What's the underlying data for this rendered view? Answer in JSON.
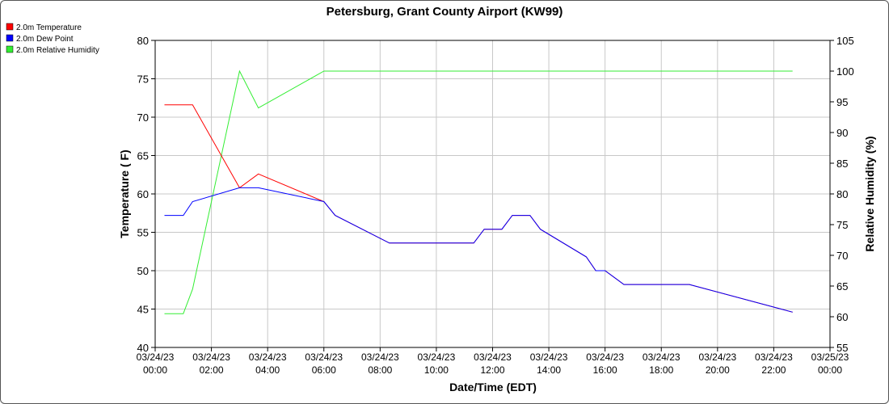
{
  "chart_data": {
    "type": "line",
    "title": "Petersburg, Grant County Airport (KW99)",
    "xlabel": "Date/Time (EDT)",
    "ylabel": "Temperature ( F)",
    "y2label": "Relative Humidity (%)",
    "xlim": [
      0,
      24
    ],
    "ylim": [
      40,
      80
    ],
    "y2lim": [
      55,
      105
    ],
    "grid": true,
    "legend_position": "top-left",
    "x_ticks": [
      {
        "date": "03/24/23",
        "time": "00:00",
        "hour": 0
      },
      {
        "date": "03/24/23",
        "time": "02:00",
        "hour": 2
      },
      {
        "date": "03/24/23",
        "time": "04:00",
        "hour": 4
      },
      {
        "date": "03/24/23",
        "time": "06:00",
        "hour": 6
      },
      {
        "date": "03/24/23",
        "time": "08:00",
        "hour": 8
      },
      {
        "date": "03/24/23",
        "time": "10:00",
        "hour": 10
      },
      {
        "date": "03/24/23",
        "time": "12:00",
        "hour": 12
      },
      {
        "date": "03/24/23",
        "time": "14:00",
        "hour": 14
      },
      {
        "date": "03/24/23",
        "time": "16:00",
        "hour": 16
      },
      {
        "date": "03/24/23",
        "time": "18:00",
        "hour": 18
      },
      {
        "date": "03/24/23",
        "time": "20:00",
        "hour": 20
      },
      {
        "date": "03/24/23",
        "time": "22:00",
        "hour": 22
      },
      {
        "date": "03/25/23",
        "time": "00:00",
        "hour": 24
      }
    ],
    "y_ticks": [
      40,
      45,
      50,
      55,
      60,
      65,
      70,
      75,
      80
    ],
    "y2_ticks": [
      55,
      60,
      65,
      70,
      75,
      80,
      85,
      90,
      95,
      100,
      105
    ],
    "series": [
      {
        "name": "2.0m Temperature",
        "color": "#ff0000",
        "axis": "left",
        "x": [
          0.33,
          1.33,
          3.0,
          3.67,
          6.0,
          6.4,
          8.33,
          11.33,
          11.7,
          12.33,
          12.7,
          13.33,
          13.7,
          15.33,
          15.67,
          16.0,
          16.67,
          18.0,
          19.0,
          22.67
        ],
        "y": [
          71.6,
          71.6,
          60.8,
          62.6,
          59.0,
          57.2,
          53.6,
          53.6,
          55.4,
          55.4,
          57.2,
          57.2,
          55.4,
          51.8,
          50.0,
          50.0,
          48.2,
          48.2,
          48.2,
          44.6
        ]
      },
      {
        "name": "2.0m Dew Point",
        "color": "#0000ff",
        "axis": "left",
        "x": [
          0.33,
          1.0,
          1.33,
          3.0,
          3.67,
          6.0,
          6.4,
          8.33,
          11.33,
          11.7,
          12.33,
          12.7,
          13.33,
          13.7,
          15.33,
          15.67,
          16.0,
          16.67,
          18.0,
          19.0,
          22.67
        ],
        "y": [
          57.2,
          57.2,
          59.0,
          60.8,
          60.8,
          59.0,
          57.2,
          53.6,
          53.6,
          55.4,
          55.4,
          57.2,
          57.2,
          55.4,
          51.8,
          50.0,
          50.0,
          48.2,
          48.2,
          48.2,
          44.6
        ]
      },
      {
        "name": "2.0m Relative Humidity",
        "color": "#33ee33",
        "axis": "right",
        "x": [
          0.33,
          1.0,
          1.33,
          3.0,
          3.67,
          6.0,
          22.67
        ],
        "y": [
          60.5,
          60.5,
          64.5,
          100.0,
          94.0,
          100.0,
          100.0
        ]
      }
    ]
  }
}
